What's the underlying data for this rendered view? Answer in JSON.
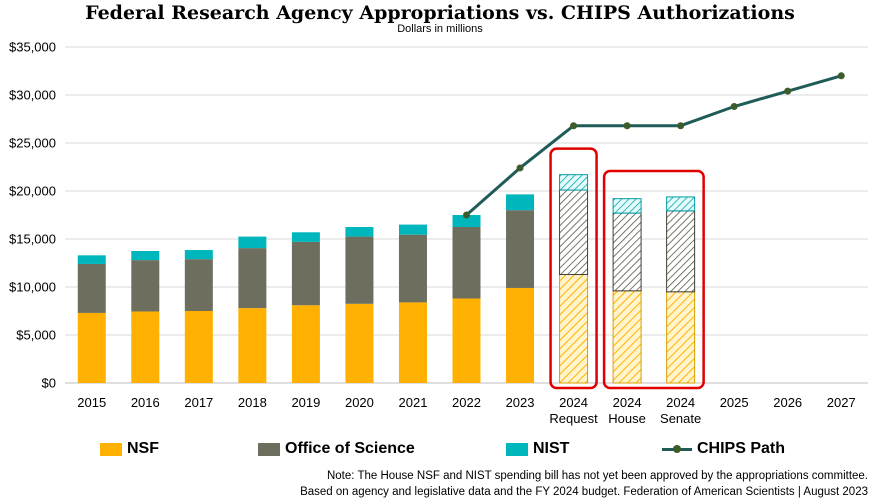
{
  "colors": {
    "nsf": "#ffb000",
    "science": "#6e6e5e",
    "nist": "#00b6bd",
    "chips": "#1f5b57",
    "chips_marker": "#3c5c2a",
    "highlight": "#e00000",
    "grid": "#d9d9d9"
  },
  "legend": {
    "nsf": "NSF",
    "science": "Office of Science",
    "nist": "NIST",
    "chips": "CHIPS Path"
  },
  "notes": {
    "line1": "Note: The House NSF and NIST spending bill has not yet been approved by the appropriations committee.",
    "line2": "Based on agency and legislative data and the FY 2024 budget. Federation of American Scientists | August 2023"
  },
  "chart_data": {
    "type": "bar",
    "stacked": true,
    "title": "Federal Research Agency Appropriations vs. CHIPS Authorizations",
    "subtitle": "Dollars in millions",
    "ylim": [
      0,
      35000
    ],
    "yticks": [
      0,
      5000,
      10000,
      15000,
      20000,
      25000,
      30000,
      35000
    ],
    "ytick_labels": [
      "$0",
      "$5,000",
      "$10,000",
      "$15,000",
      "$20,000",
      "$25,000",
      "$30,000",
      "$35,000"
    ],
    "categories": [
      "2015",
      "2016",
      "2017",
      "2018",
      "2019",
      "2020",
      "2021",
      "2022",
      "2023",
      "2024 Request",
      "2024 House",
      "2024 Senate",
      "2025",
      "2026",
      "2027"
    ],
    "category_labels": [
      [
        "2015"
      ],
      [
        "2016"
      ],
      [
        "2017"
      ],
      [
        "2018"
      ],
      [
        "2019"
      ],
      [
        "2020"
      ],
      [
        "2021"
      ],
      [
        "2022"
      ],
      [
        "2023"
      ],
      [
        "2024",
        "Request"
      ],
      [
        "2024",
        "House"
      ],
      [
        "2024",
        "Senate"
      ],
      [
        "2025"
      ],
      [
        "2026"
      ],
      [
        "2027"
      ]
    ],
    "series": [
      {
        "name": "NSF",
        "values": [
          7300,
          7450,
          7500,
          7800,
          8100,
          8250,
          8400,
          8800,
          9900,
          11300,
          9600,
          9500,
          null,
          null,
          null
        ]
      },
      {
        "name": "Office of Science",
        "values": [
          5100,
          5350,
          5400,
          6250,
          6600,
          7000,
          7050,
          7450,
          8100,
          8800,
          8100,
          8430,
          null,
          null,
          null
        ]
      },
      {
        "name": "NIST",
        "values": [
          900,
          950,
          950,
          1200,
          1000,
          1000,
          1050,
          1250,
          1650,
          1600,
          1500,
          1450,
          null,
          null,
          null
        ]
      }
    ],
    "projected_categories": [
      "2024 Request",
      "2024 House",
      "2024 Senate"
    ],
    "line": {
      "name": "CHIPS Path",
      "x": [
        "2022",
        "2023",
        "2024 Request",
        "2024 House",
        "2024 Senate",
        "2025",
        "2026",
        "2027"
      ],
      "values": [
        17500,
        22400,
        26800,
        26800,
        26800,
        28800,
        30400,
        32000
      ]
    },
    "highlight_groups": [
      [
        "2024 Request"
      ],
      [
        "2024 House",
        "2024 Senate"
      ]
    ]
  }
}
